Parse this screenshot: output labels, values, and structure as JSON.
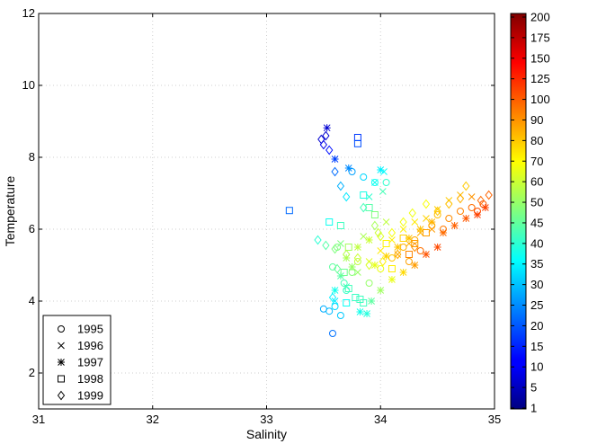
{
  "chart_data": {
    "type": "scatter",
    "xlabel": "Salinity",
    "ylabel": "Temperature",
    "xlim": [
      31,
      35
    ],
    "ylim": [
      1,
      12
    ],
    "xticks": [
      "31",
      "32",
      "33",
      "34",
      "35"
    ],
    "yticks": [
      "2",
      "4",
      "6",
      "8",
      "10",
      "12"
    ],
    "grid": true,
    "legend": {
      "placement": "bottom-left",
      "entries": [
        {
          "label": "1995",
          "marker": "circle"
        },
        {
          "label": "1996",
          "marker": "x"
        },
        {
          "label": "1997",
          "marker": "star"
        },
        {
          "label": "1998",
          "marker": "square"
        },
        {
          "label": "1999",
          "marker": "diamond"
        }
      ]
    },
    "colorbar": {
      "colormap": "jet",
      "ticks": [
        "1",
        "5",
        "10",
        "15",
        "20",
        "25",
        "30",
        "35",
        "40",
        "45",
        "50",
        "60",
        "70",
        "80",
        "90",
        "100",
        "125",
        "150",
        "175",
        "200"
      ]
    },
    "series": [
      {
        "name": "1995",
        "marker": "circle",
        "points": [
          [
            33.5,
            3.78
          ],
          [
            33.55,
            3.72
          ],
          [
            33.6,
            3.85
          ],
          [
            33.65,
            3.6
          ],
          [
            33.58,
            3.1
          ],
          [
            33.7,
            4.3
          ],
          [
            33.75,
            4.8
          ],
          [
            33.8,
            5.1
          ],
          [
            33.9,
            4.5
          ],
          [
            34.0,
            4.9
          ],
          [
            34.1,
            5.2
          ],
          [
            34.2,
            5.5
          ],
          [
            34.3,
            5.7
          ],
          [
            34.45,
            6.1
          ],
          [
            34.5,
            6.4
          ],
          [
            34.6,
            6.3
          ],
          [
            34.7,
            6.5
          ],
          [
            34.8,
            6.6
          ],
          [
            34.9,
            6.7
          ],
          [
            33.75,
            7.6
          ],
          [
            33.85,
            7.45
          ],
          [
            33.95,
            7.3
          ],
          [
            34.05,
            7.3
          ],
          [
            33.62,
            5.5
          ],
          [
            33.58,
            4.95
          ],
          [
            34.25,
            5.1
          ],
          [
            34.35,
            5.4
          ],
          [
            34.55,
            6.0
          ],
          [
            34.85,
            6.5
          ],
          [
            33.68,
            4.5
          ]
        ]
      },
      {
        "name": "1996",
        "marker": "x",
        "points": [
          [
            33.6,
            4.0
          ],
          [
            33.7,
            4.4
          ],
          [
            33.8,
            4.8
          ],
          [
            33.9,
            5.1
          ],
          [
            34.0,
            5.4
          ],
          [
            34.1,
            5.7
          ],
          [
            34.2,
            6.0
          ],
          [
            34.3,
            6.2
          ],
          [
            34.4,
            6.3
          ],
          [
            34.5,
            6.55
          ],
          [
            34.6,
            6.8
          ],
          [
            34.7,
            6.95
          ],
          [
            34.8,
            6.9
          ],
          [
            34.02,
            7.05
          ],
          [
            34.03,
            7.6
          ],
          [
            33.95,
            7.3
          ],
          [
            33.9,
            6.9
          ],
          [
            34.05,
            6.2
          ],
          [
            33.85,
            5.8
          ],
          [
            33.65,
            5.6
          ],
          [
            34.15,
            5.3
          ],
          [
            34.25,
            5.6
          ],
          [
            34.35,
            5.9
          ],
          [
            34.45,
            6.0
          ]
        ]
      },
      {
        "name": "1997",
        "marker": "star",
        "points": [
          [
            33.53,
            8.82
          ],
          [
            33.6,
            7.95
          ],
          [
            33.72,
            7.7
          ],
          [
            34.0,
            7.65
          ],
          [
            33.82,
            3.7
          ],
          [
            33.88,
            3.65
          ],
          [
            33.92,
            4.0
          ],
          [
            34.0,
            4.3
          ],
          [
            34.1,
            4.6
          ],
          [
            34.2,
            4.8
          ],
          [
            34.3,
            5.0
          ],
          [
            34.4,
            5.3
          ],
          [
            34.5,
            5.5
          ],
          [
            34.55,
            5.9
          ],
          [
            34.65,
            6.1
          ],
          [
            34.75,
            6.3
          ],
          [
            34.85,
            6.4
          ],
          [
            34.92,
            6.6
          ],
          [
            33.7,
            5.2
          ],
          [
            33.8,
            5.5
          ],
          [
            33.9,
            5.7
          ],
          [
            33.65,
            4.7
          ],
          [
            33.75,
            4.95
          ],
          [
            33.95,
            5.0
          ],
          [
            34.05,
            5.25
          ],
          [
            34.15,
            5.5
          ],
          [
            34.25,
            5.75
          ],
          [
            34.35,
            6.0
          ],
          [
            34.45,
            6.2
          ],
          [
            33.6,
            4.3
          ]
        ]
      },
      {
        "name": "1998",
        "marker": "square",
        "points": [
          [
            33.2,
            6.52
          ],
          [
            33.55,
            6.2
          ],
          [
            33.65,
            6.1
          ],
          [
            33.72,
            5.5
          ],
          [
            33.8,
            8.55
          ],
          [
            33.8,
            8.38
          ],
          [
            33.85,
            6.95
          ],
          [
            33.9,
            6.6
          ],
          [
            33.95,
            6.4
          ],
          [
            34.05,
            5.6
          ],
          [
            34.2,
            5.75
          ],
          [
            34.3,
            5.6
          ],
          [
            34.4,
            5.9
          ],
          [
            33.78,
            4.1
          ],
          [
            33.82,
            4.05
          ],
          [
            33.85,
            3.95
          ],
          [
            33.7,
            3.95
          ],
          [
            33.68,
            4.8
          ],
          [
            34.1,
            4.9
          ],
          [
            34.25,
            5.3
          ],
          [
            33.72,
            4.35
          ]
        ]
      },
      {
        "name": "1999",
        "marker": "diamond",
        "points": [
          [
            33.48,
            8.5
          ],
          [
            33.5,
            8.35
          ],
          [
            33.52,
            8.6
          ],
          [
            33.55,
            8.2
          ],
          [
            33.6,
            7.6
          ],
          [
            33.65,
            7.2
          ],
          [
            33.7,
            6.9
          ],
          [
            33.85,
            6.6
          ],
          [
            33.95,
            6.1
          ],
          [
            34.0,
            5.8
          ],
          [
            34.1,
            5.9
          ],
          [
            34.2,
            6.2
          ],
          [
            34.28,
            6.45
          ],
          [
            34.4,
            6.7
          ],
          [
            34.5,
            6.5
          ],
          [
            34.6,
            6.7
          ],
          [
            34.7,
            6.85
          ],
          [
            34.75,
            7.2
          ],
          [
            34.88,
            6.8
          ],
          [
            34.95,
            6.95
          ],
          [
            33.45,
            5.7
          ],
          [
            33.52,
            5.55
          ],
          [
            33.6,
            5.45
          ],
          [
            33.7,
            5.3
          ],
          [
            33.8,
            5.2
          ],
          [
            33.9,
            5.0
          ],
          [
            34.02,
            5.1
          ],
          [
            34.15,
            5.3
          ],
          [
            34.3,
            5.5
          ],
          [
            33.98,
            5.9
          ],
          [
            33.62,
            4.9
          ],
          [
            33.58,
            4.1
          ]
        ]
      }
    ]
  }
}
